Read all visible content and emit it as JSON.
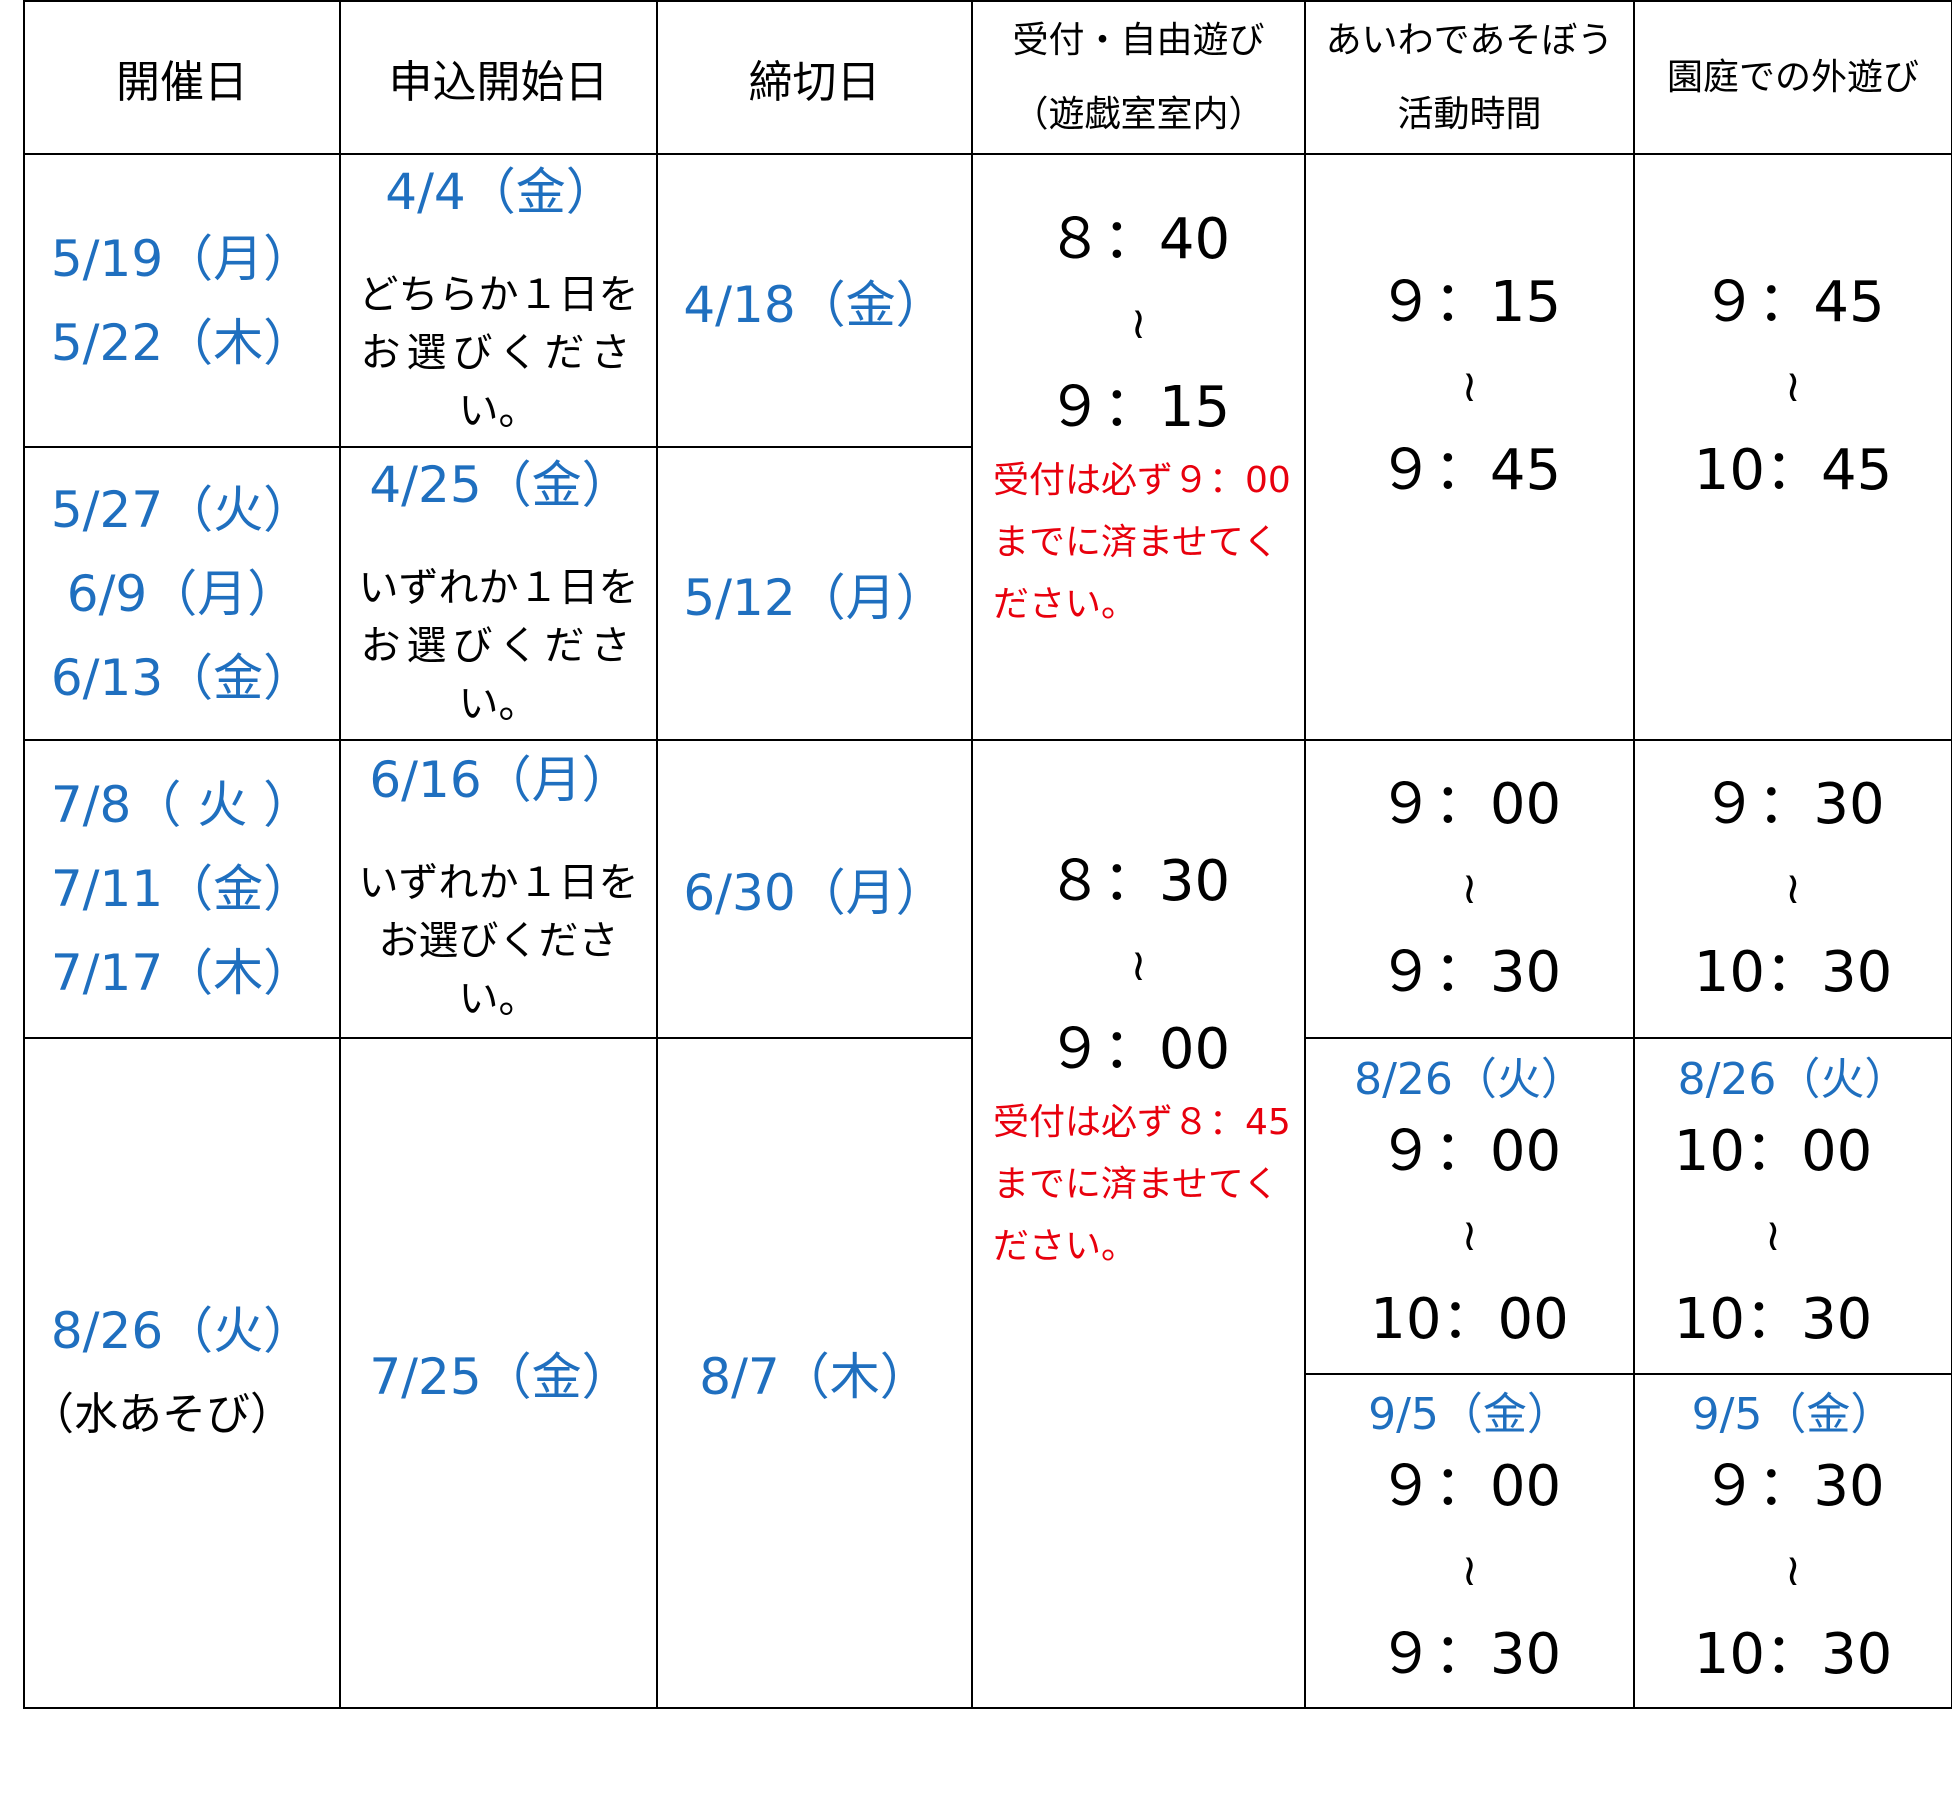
{
  "header": {
    "date": "開催日",
    "apply_start": "申込開始日",
    "deadline": "締切日",
    "reception_l1": "受付・自由遊び",
    "reception_l2": "（遊戯室室内）",
    "activity_l1": "あいわであそぼう",
    "activity_l2": "活動時間",
    "garden": "園庭での外遊び"
  },
  "rows": [
    {
      "dates": [
        "5/19（月）",
        "5/22（木）"
      ],
      "apply_start": "4/4（金）",
      "note_l1": "どちらか１日を",
      "note_l2": "お選びくださ",
      "note_l3": "い。",
      "deadline": "4/18（金）"
    },
    {
      "dates": [
        "5/27（火）",
        "6/9（月）",
        "6/13（金）"
      ],
      "apply_start": "4/25（金）",
      "note_l1": "いずれか１日を",
      "note_l2": "お選びくださ",
      "note_l3": "い。",
      "deadline": "5/12（月）"
    },
    {
      "dates": [
        "7/8（ 火 ）",
        "7/11（金）",
        "7/17（木）"
      ],
      "apply_start": "6/16（月）",
      "note_l1": "いずれか１日を",
      "note_l2": "お選びくださ",
      "note_l3": "い。",
      "deadline": "6/30（月）"
    },
    {
      "dates": [
        "8/26（火）"
      ],
      "sub": "（水あそび）",
      "apply_start": "7/25（金）",
      "deadline": "8/7（木）"
    }
  ],
  "reception": [
    {
      "start": "８：40",
      "tilde": "≀",
      "end": "９：15",
      "note_l1": "受付は必ず９：00",
      "note_l2": "までに済ませてく",
      "note_l3": "ださい。"
    },
    {
      "start": "８：30",
      "tilde": "≀",
      "end": "９：00",
      "note_l1": "受付は必ず８：45",
      "note_l2": "までに済ませてく",
      "note_l3": "ださい。"
    }
  ],
  "activity": {
    "group1": {
      "start": "９：15",
      "tilde": "≀",
      "end": "９：45"
    },
    "group2": {
      "start": "９：00",
      "tilde": "≀",
      "end": "９：30"
    },
    "aug": {
      "date": "8/26（火）",
      "start": "９：00",
      "tilde": "≀",
      "end": "10：00"
    },
    "sep": {
      "date": "9/5（金）",
      "start": "９：00",
      "tilde": "≀",
      "end": "９：30"
    }
  },
  "garden": {
    "group1": {
      "start": "９：45",
      "tilde": "≀",
      "end": "10：45"
    },
    "group2": {
      "start": "９：30",
      "tilde": "≀",
      "end": "10：30"
    },
    "aug": {
      "date": "8/26（火）",
      "start": "10：00",
      "tilde": "≀",
      "end": "10：30"
    },
    "sep": {
      "date": "9/5（金）",
      "start": "９：30",
      "tilde": "≀",
      "end": "10：30"
    }
  },
  "colors": {
    "blue": "#1f6fbf",
    "red": "#e8000d"
  }
}
